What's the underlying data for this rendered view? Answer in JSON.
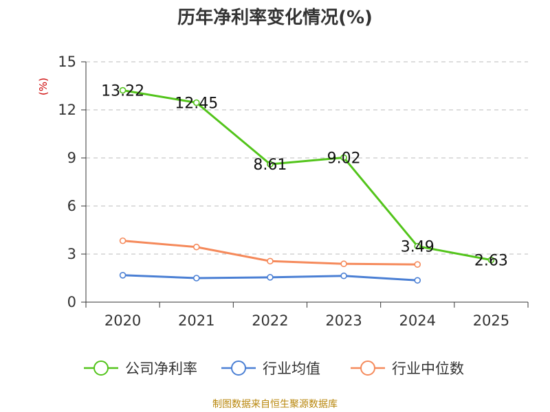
{
  "chart_data": {
    "type": "line",
    "title": "历年净利率变化情况(%)",
    "ylabel": "(%)",
    "xlabel": "",
    "categories": [
      "2020",
      "2021",
      "2022",
      "2023",
      "2024",
      "2025"
    ],
    "ylim": [
      0,
      15
    ],
    "yticks": [
      0,
      3,
      6,
      9,
      12,
      15
    ],
    "grid": true,
    "legend_position": "bottom",
    "series": [
      {
        "name": "公司净利率",
        "color": "#52c41a",
        "values": [
          13.22,
          12.45,
          8.61,
          9.02,
          3.49,
          2.63
        ],
        "labels": [
          "13.22",
          "12.45",
          "8.61",
          "9.02",
          "3.49",
          "2.63"
        ],
        "show_labels": true
      },
      {
        "name": "行业均值",
        "color": "#4a7fd4",
        "values": [
          1.68,
          1.5,
          1.55,
          1.64,
          1.36,
          null
        ],
        "show_labels": false
      },
      {
        "name": "行业中位数",
        "color": "#f5895a",
        "values": [
          3.83,
          3.44,
          2.56,
          2.39,
          2.35,
          null
        ],
        "show_labels": false
      }
    ]
  },
  "source": "制图数据来自恒生聚源数据库"
}
